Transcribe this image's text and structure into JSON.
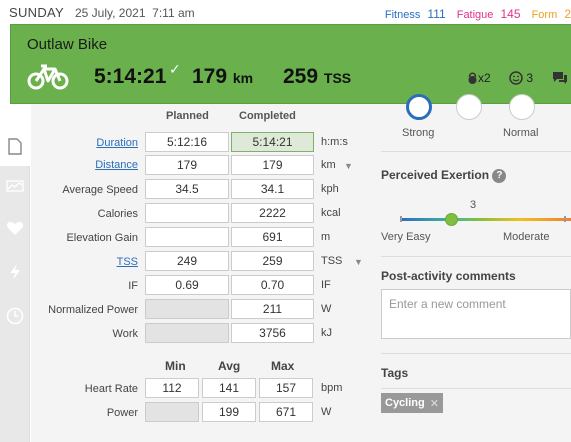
{
  "header": {
    "day": "SUNDAY",
    "date": "25 July, 2021",
    "time": "7:11 am",
    "fitness_label": "Fitness",
    "fitness_value": "111",
    "fatigue_label": "Fatigue",
    "fatigue_value": "145",
    "form_label": "Form",
    "form_value": "2"
  },
  "workout": {
    "title": "Outlaw Bike",
    "duration": "5:14:21",
    "distance": "179",
    "distance_unit": "km",
    "tss": "259",
    "tss_unit": "TSS",
    "equipment_count": "x2",
    "feel_count": "3"
  },
  "table": {
    "planned_header": "Planned",
    "completed_header": "Completed",
    "rows": [
      {
        "label": "Duration",
        "planned": "5:12:16",
        "completed": "5:14:21",
        "unit": "h:m:s"
      },
      {
        "label": "Distance",
        "planned": "179",
        "completed": "179",
        "unit": "km"
      },
      {
        "label": "Average Speed",
        "planned": "34.5",
        "completed": "34.1",
        "unit": "kph"
      },
      {
        "label": "Calories",
        "planned": "",
        "completed": "2222",
        "unit": "kcal"
      },
      {
        "label": "Elevation Gain",
        "planned": "",
        "completed": "691",
        "unit": "m"
      },
      {
        "label": "TSS",
        "planned": "249",
        "completed": "259",
        "unit": "TSS"
      },
      {
        "label": "IF",
        "planned": "0.69",
        "completed": "0.70",
        "unit": "IF"
      },
      {
        "label": "Normalized Power",
        "planned": "",
        "completed": "211",
        "unit": "W"
      },
      {
        "label": "Work",
        "planned": "",
        "completed": "3756",
        "unit": "kJ"
      }
    ]
  },
  "minmax": {
    "min_header": "Min",
    "avg_header": "Avg",
    "max_header": "Max",
    "rows": [
      {
        "label": "Heart Rate",
        "min": "112",
        "avg": "141",
        "max": "157",
        "unit": "bpm"
      },
      {
        "label": "Power",
        "min": "",
        "avg": "199",
        "max": "671",
        "unit": "W"
      }
    ]
  },
  "right": {
    "feel_strong": "Strong",
    "feel_normal": "Normal",
    "rpe_title": "Perceived Exertion",
    "rpe_value": "3",
    "rpe_fraction": 0.3,
    "rpe_low": "Very Easy",
    "rpe_mid": "Moderate",
    "comments_title": "Post-activity comments",
    "comment_placeholder": "Enter a new comment",
    "tags_title": "Tags",
    "tag": "Cycling"
  },
  "colors": {
    "panel_green": "#6ab04c",
    "fitness": "#2a6ebb",
    "fatigue": "#e0338a",
    "form": "#f0a020"
  }
}
